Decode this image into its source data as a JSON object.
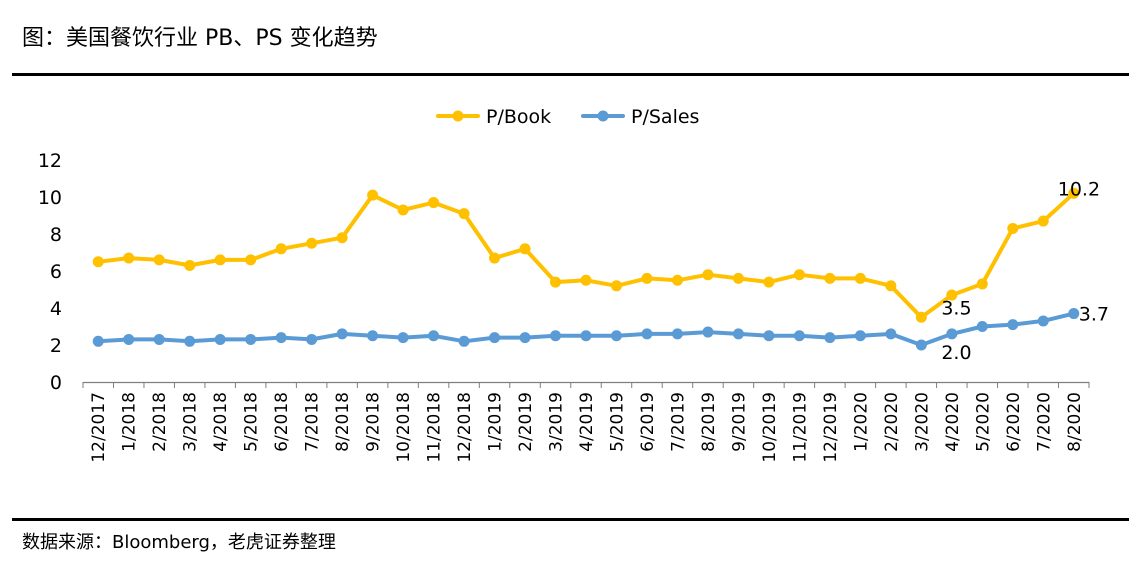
{
  "title": "图：美国餐饮行业 PB、PS 变化趋势",
  "source": "数据来源：Bloomberg，老虎证券整理",
  "chart_data": {
    "type": "line",
    "categories": [
      "12/2017",
      "1/2018",
      "2/2018",
      "3/2018",
      "4/2018",
      "5/2018",
      "6/2018",
      "7/2018",
      "8/2018",
      "9/2018",
      "10/2018",
      "11/2018",
      "12/2018",
      "1/2019",
      "2/2019",
      "3/2019",
      "4/2019",
      "5/2019",
      "6/2019",
      "7/2019",
      "8/2019",
      "9/2019",
      "10/2019",
      "11/2019",
      "12/2019",
      "1/2020",
      "2/2020",
      "3/2020",
      "4/2020",
      "5/2020",
      "6/2020",
      "7/2020",
      "8/2020"
    ],
    "series": [
      {
        "name": "P/Book",
        "color": "#FFC000",
        "values": [
          6.5,
          6.7,
          6.6,
          6.3,
          6.6,
          6.6,
          7.2,
          7.5,
          7.8,
          10.1,
          9.3,
          9.7,
          9.1,
          6.7,
          7.2,
          5.4,
          5.5,
          5.2,
          5.6,
          5.5,
          5.8,
          5.6,
          5.4,
          5.8,
          5.6,
          5.6,
          5.2,
          3.5,
          4.7,
          5.3,
          8.3,
          8.7,
          10.2
        ]
      },
      {
        "name": "P/Sales",
        "color": "#5B9BD5",
        "values": [
          2.2,
          2.3,
          2.3,
          2.2,
          2.3,
          2.3,
          2.4,
          2.3,
          2.6,
          2.5,
          2.4,
          2.5,
          2.2,
          2.4,
          2.4,
          2.5,
          2.5,
          2.5,
          2.6,
          2.6,
          2.7,
          2.6,
          2.5,
          2.5,
          2.4,
          2.5,
          2.6,
          2.0,
          2.6,
          3.0,
          3.1,
          3.3,
          3.7
        ]
      }
    ],
    "ylim": [
      0,
      12
    ],
    "yticks": [
      "0",
      "2",
      "4",
      "6",
      "8",
      "10",
      "12"
    ],
    "grid": false,
    "legend": "top-center",
    "annotations": [
      {
        "series": "P/Book",
        "category": "3/2020",
        "label": "3.5"
      },
      {
        "series": "P/Sales",
        "category": "3/2020",
        "label": "2.0"
      },
      {
        "series": "P/Book",
        "category": "8/2020",
        "label": "10.2"
      },
      {
        "series": "P/Sales",
        "category": "8/2020",
        "label": "3.7"
      }
    ]
  }
}
